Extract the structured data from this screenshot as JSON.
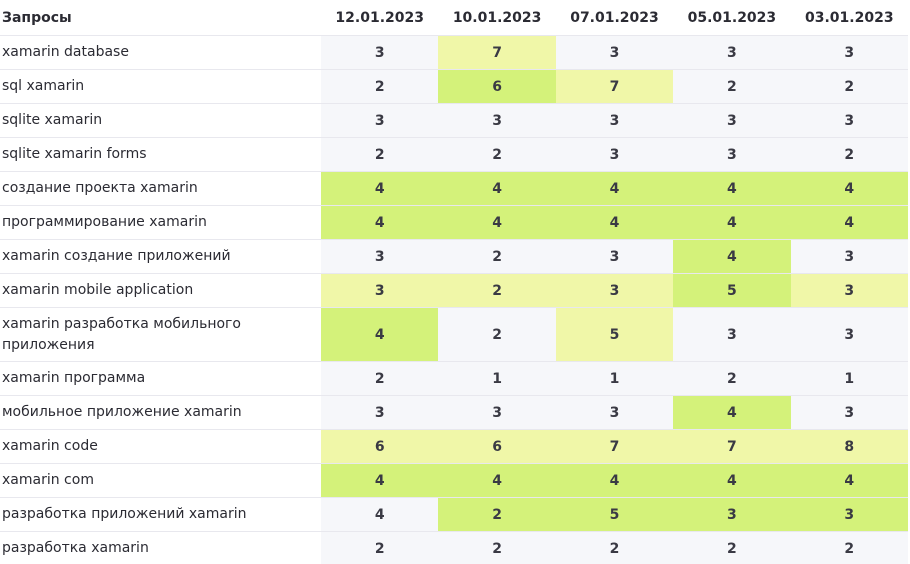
{
  "table": {
    "header_query": "Запросы",
    "dates": [
      "12.01.2023",
      "10.01.2023",
      "07.01.2023",
      "05.01.2023",
      "03.01.2023"
    ],
    "colors": {
      "neutral": "#f6f7fa",
      "highlight_light": "#f0f7a8",
      "highlight_strong": "#d4f27a"
    },
    "rows": [
      {
        "query": "xamarin database",
        "values": [
          "3",
          "7",
          "3",
          "3",
          "3"
        ],
        "levels": [
          0,
          1,
          0,
          0,
          0
        ]
      },
      {
        "query": "sql xamarin",
        "values": [
          "2",
          "6",
          "7",
          "2",
          "2"
        ],
        "levels": [
          0,
          2,
          1,
          0,
          0
        ]
      },
      {
        "query": "sqlite xamarin",
        "values": [
          "3",
          "3",
          "3",
          "3",
          "3"
        ],
        "levels": [
          0,
          0,
          0,
          0,
          0
        ]
      },
      {
        "query": "sqlite xamarin forms",
        "values": [
          "2",
          "2",
          "3",
          "3",
          "2"
        ],
        "levels": [
          0,
          0,
          0,
          0,
          0
        ]
      },
      {
        "query": "создание проекта xamarin",
        "values": [
          "4",
          "4",
          "4",
          "4",
          "4"
        ],
        "levels": [
          2,
          2,
          2,
          2,
          2
        ]
      },
      {
        "query": "программирование xamarin",
        "values": [
          "4",
          "4",
          "4",
          "4",
          "4"
        ],
        "levels": [
          2,
          2,
          2,
          2,
          2
        ]
      },
      {
        "query": "xamarin создание приложений",
        "values": [
          "3",
          "2",
          "3",
          "4",
          "3"
        ],
        "levels": [
          0,
          0,
          0,
          2,
          0
        ]
      },
      {
        "query": "xamarin mobile application",
        "values": [
          "3",
          "2",
          "3",
          "5",
          "3"
        ],
        "levels": [
          1,
          1,
          1,
          2,
          1
        ]
      },
      {
        "query": "xamarin разработка мобильного приложения",
        "values": [
          "4",
          "2",
          "5",
          "3",
          "3"
        ],
        "levels": [
          2,
          0,
          1,
          0,
          0
        ]
      },
      {
        "query": "xamarin программа",
        "values": [
          "2",
          "1",
          "1",
          "2",
          "1"
        ],
        "levels": [
          0,
          0,
          0,
          0,
          0
        ]
      },
      {
        "query": "мобильное приложение xamarin",
        "values": [
          "3",
          "3",
          "3",
          "4",
          "3"
        ],
        "levels": [
          0,
          0,
          0,
          2,
          0
        ]
      },
      {
        "query": "xamarin code",
        "values": [
          "6",
          "6",
          "7",
          "7",
          "8"
        ],
        "levels": [
          1,
          1,
          1,
          1,
          1
        ]
      },
      {
        "query": "xamarin com",
        "values": [
          "4",
          "4",
          "4",
          "4",
          "4"
        ],
        "levels": [
          2,
          2,
          2,
          2,
          2
        ]
      },
      {
        "query": "разработка приложений xamarin",
        "values": [
          "4",
          "2",
          "5",
          "3",
          "3"
        ],
        "levels": [
          0,
          2,
          2,
          2,
          2
        ]
      },
      {
        "query": "разработка xamarin",
        "values": [
          "2",
          "2",
          "2",
          "2",
          "2"
        ],
        "levels": [
          0,
          0,
          0,
          0,
          0
        ]
      }
    ]
  }
}
